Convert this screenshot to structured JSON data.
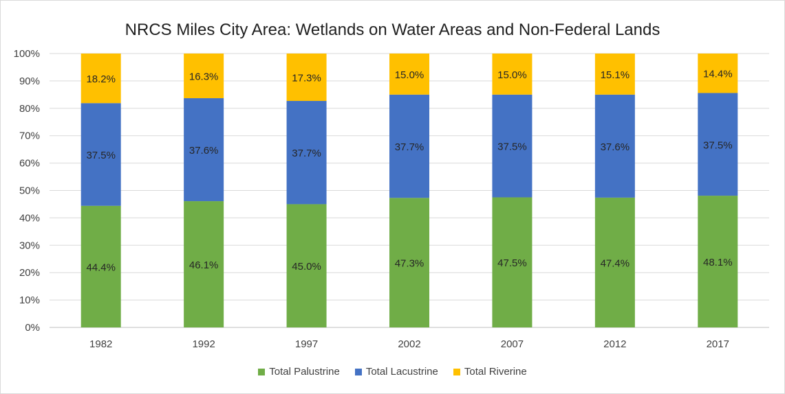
{
  "chart_data": {
    "type": "bar",
    "stacked": true,
    "title": "NRCS Miles City Area: Wetlands on Water Areas and Non-Federal Lands",
    "xlabel": "",
    "ylabel": "",
    "ylim": [
      0,
      100
    ],
    "yticks": [
      "0%",
      "10%",
      "20%",
      "30%",
      "40%",
      "50%",
      "60%",
      "70%",
      "80%",
      "90%",
      "100%"
    ],
    "grid": true,
    "legend_position": "bottom",
    "categories": [
      "1982",
      "1992",
      "1997",
      "2002",
      "2007",
      "2012",
      "2017"
    ],
    "series": [
      {
        "name": "Total Palustrine",
        "color": "#70ad47",
        "values": [
          44.4,
          46.1,
          45.0,
          47.3,
          47.5,
          47.4,
          48.1
        ],
        "labels": [
          "44.4%",
          "46.1%",
          "45.0%",
          "47.3%",
          "47.5%",
          "47.4%",
          "48.1%"
        ]
      },
      {
        "name": "Total Lacustrine",
        "color": "#4472c4",
        "values": [
          37.5,
          37.6,
          37.7,
          37.7,
          37.5,
          37.6,
          37.5
        ],
        "labels": [
          "37.5%",
          "37.6%",
          "37.7%",
          "37.7%",
          "37.5%",
          "37.6%",
          "37.5%"
        ]
      },
      {
        "name": "Total Riverine",
        "color": "#ffc000",
        "values": [
          18.2,
          16.3,
          17.3,
          15.0,
          15.0,
          15.1,
          14.4
        ],
        "labels": [
          "18.2%",
          "16.3%",
          "17.3%",
          "15.0%",
          "15.0%",
          "15.1%",
          "14.4%"
        ]
      }
    ]
  }
}
